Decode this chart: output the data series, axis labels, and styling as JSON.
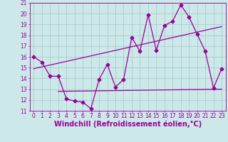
{
  "title": "",
  "xlabel": "Windchill (Refroidissement éolien,°C)",
  "ylabel": "",
  "bg_color": "#cce8e8",
  "line_color": "#990099",
  "grid_color": "#aacccc",
  "xlim": [
    -0.5,
    23.5
  ],
  "ylim": [
    11,
    21
  ],
  "yticks": [
    11,
    12,
    13,
    14,
    15,
    16,
    17,
    18,
    19,
    20,
    21
  ],
  "xticks": [
    0,
    1,
    2,
    3,
    4,
    5,
    6,
    7,
    8,
    9,
    10,
    11,
    12,
    13,
    14,
    15,
    16,
    17,
    18,
    19,
    20,
    21,
    22,
    23
  ],
  "line1_x": [
    0,
    1,
    2,
    3,
    4,
    5,
    6,
    7,
    8,
    9,
    10,
    11,
    12,
    13,
    14,
    15,
    16,
    17,
    18,
    19,
    20,
    21,
    22,
    23
  ],
  "line1_y": [
    16.0,
    15.5,
    14.2,
    14.2,
    12.1,
    11.9,
    11.8,
    11.2,
    13.9,
    15.3,
    13.2,
    13.9,
    17.8,
    16.5,
    19.9,
    16.6,
    18.9,
    19.3,
    20.8,
    19.7,
    18.1,
    16.5,
    13.1,
    14.9
  ],
  "line2_x": [
    3,
    23
  ],
  "line2_y": [
    12.8,
    13.0
  ],
  "line3_x": [
    0,
    23
  ],
  "line3_y": [
    14.9,
    18.8
  ],
  "marker_size": 2.5,
  "font_size_tick": 5.5,
  "font_size_xlabel": 7.0
}
